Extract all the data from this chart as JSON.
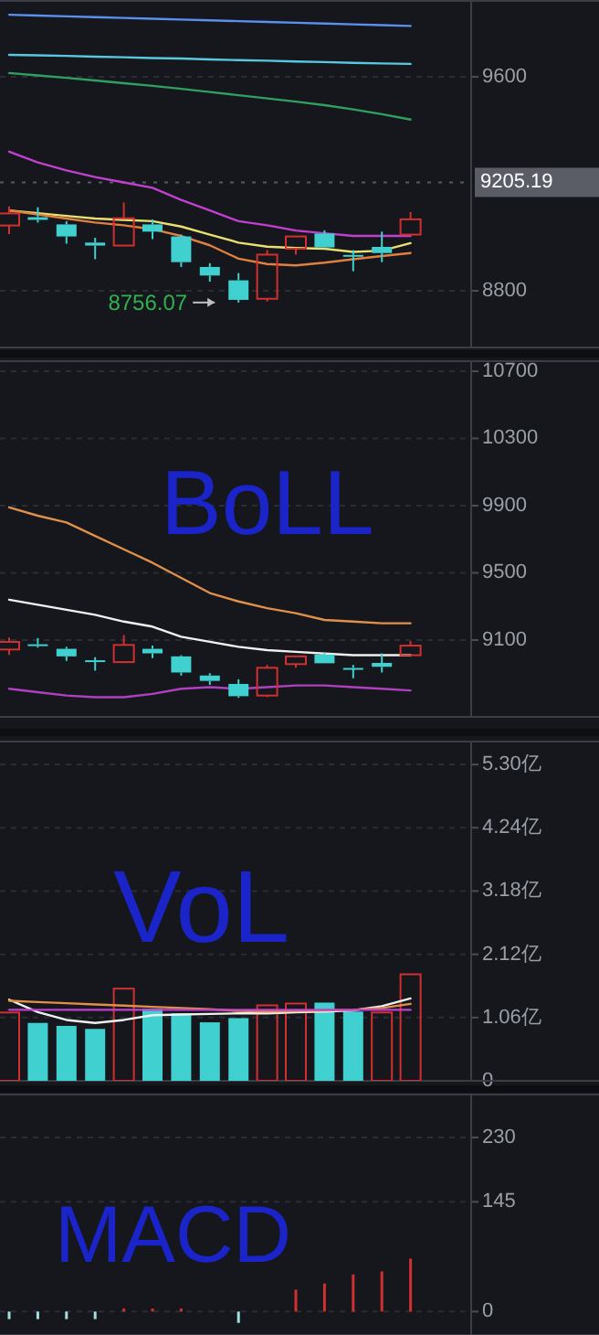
{
  "chart_data": [
    {
      "type": "candlestick",
      "categories": [
        null,
        null,
        null,
        null,
        null,
        null,
        null,
        null,
        null,
        null,
        null,
        null,
        null,
        null,
        null
      ],
      "ohlc": [
        [
          9044,
          9115,
          9012,
          9089
        ],
        [
          9075,
          9112,
          9055,
          9065
        ],
        [
          9048,
          9060,
          8976,
          9003
        ],
        [
          8980,
          8998,
          8918,
          8969
        ],
        [
          8969,
          9130,
          8969,
          9071
        ],
        [
          9048,
          9067,
          8993,
          9021
        ],
        [
          9003,
          9010,
          8889,
          8907
        ],
        [
          8889,
          8903,
          8834,
          8857
        ],
        [
          8839,
          8866,
          8756.07,
          8766
        ],
        [
          8770,
          8952,
          8760,
          8935
        ],
        [
          8957,
          9003,
          8935,
          9003
        ],
        [
          9014,
          9026,
          8962,
          8962
        ],
        [
          8934,
          8952,
          8873,
          8930
        ],
        [
          8964,
          9021,
          8907,
          8941
        ],
        [
          9010,
          9094,
          9010,
          9067
        ]
      ],
      "colors": [
        "#d03030",
        "#40d0d0",
        "#40d0d0",
        "#40d0d0",
        "#d03030",
        "#40d0d0",
        "#40d0d0",
        "#40d0d0",
        "#40d0d0",
        "#d03030",
        "#d03030",
        "#40d0d0",
        "#40d0d0",
        "#40d0d0",
        "#d03030"
      ],
      "series": [
        {
          "type": "line",
          "color": "#5b8ff0",
          "values": [
            9832,
            9829,
            9826,
            9823,
            9820,
            9817,
            9814,
            9811,
            9808,
            9805,
            9802,
            9799,
            9796,
            9793,
            9790
          ]
        },
        {
          "type": "line",
          "color": "#58c8e0",
          "values": [
            9682,
            9680,
            9678,
            9675,
            9673,
            9670,
            9668,
            9665,
            9662,
            9660,
            9657,
            9655,
            9652,
            9650,
            9648
          ]
        },
        {
          "type": "line",
          "color": "#30a060",
          "values": [
            9614,
            9605,
            9596,
            9586,
            9576,
            9566,
            9555,
            9543,
            9531,
            9519,
            9507,
            9494,
            9478,
            9460,
            9440
          ]
        },
        {
          "type": "line",
          "color": "#c040d0",
          "values": [
            9320,
            9280,
            9250,
            9225,
            9205,
            9185,
            9140,
            9100,
            9060,
            9045,
            9025,
            9015,
            9005,
            9005,
            9005
          ]
        },
        {
          "type": "line",
          "color": "#e8e070",
          "values": [
            9100,
            9090,
            9080,
            9070,
            9065,
            9060,
            9040,
            9010,
            8980,
            8965,
            8960,
            8957,
            8945,
            8950,
            8978
          ]
        },
        {
          "type": "line",
          "color": "#e08040",
          "values": [
            9100,
            9085,
            9070,
            9055,
            9045,
            9030,
            9005,
            8970,
            8920,
            8900,
            8895,
            8905,
            8918,
            8930,
            8941
          ]
        }
      ],
      "ylim": [
        8588,
        9887
      ],
      "yticks": [
        8800,
        9600
      ],
      "grid": "y",
      "tick_labels": "y",
      "ref_lines": [
        {
          "axis": "y",
          "value": 9205.19,
          "label": "9205.19",
          "color": "#5a5d66"
        }
      ],
      "annotations": [
        "8756.07"
      ]
    },
    {
      "type": "candlestick",
      "categories": [
        null,
        null,
        null,
        null,
        null,
        null,
        null,
        null,
        null,
        null,
        null,
        null,
        null,
        null,
        null
      ],
      "ohlc": [
        [
          9044,
          9115,
          9012,
          9089
        ],
        [
          9075,
          9112,
          9055,
          9065
        ],
        [
          9048,
          9060,
          8976,
          9003
        ],
        [
          8980,
          8998,
          8918,
          8969
        ],
        [
          8969,
          9130,
          8969,
          9071
        ],
        [
          9048,
          9067,
          8993,
          9021
        ],
        [
          9003,
          9010,
          8889,
          8907
        ],
        [
          8889,
          8903,
          8834,
          8857
        ],
        [
          8839,
          8866,
          8756.07,
          8766
        ],
        [
          8770,
          8952,
          8760,
          8935
        ],
        [
          8957,
          9003,
          8935,
          9003
        ],
        [
          9014,
          9026,
          8962,
          8962
        ],
        [
          8934,
          8952,
          8873,
          8930
        ],
        [
          8964,
          9021,
          8907,
          8941
        ],
        [
          9010,
          9094,
          9010,
          9067
        ]
      ],
      "colors": [
        "#d03030",
        "#40d0d0",
        "#40d0d0",
        "#40d0d0",
        "#d03030",
        "#40d0d0",
        "#40d0d0",
        "#40d0d0",
        "#40d0d0",
        "#d03030",
        "#d03030",
        "#40d0d0",
        "#40d0d0",
        "#40d0d0",
        "#d03030"
      ],
      "series": [
        {
          "type": "line",
          "color": "#e0904a",
          "values": [
            9890,
            9840,
            9800,
            9720,
            9640,
            9560,
            9470,
            9380,
            9330,
            9290,
            9260,
            9220,
            9210,
            9200,
            9200
          ]
        },
        {
          "type": "line",
          "color": "#f0f0f0",
          "values": [
            9340,
            9310,
            9280,
            9250,
            9210,
            9180,
            9120,
            9090,
            9060,
            9040,
            9030,
            9020,
            9010,
            9010,
            9010
          ]
        },
        {
          "type": "line",
          "color": "#b040c0",
          "values": [
            8810,
            8790,
            8770,
            8760,
            8760,
            8780,
            8810,
            8820,
            8810,
            8820,
            8830,
            8830,
            8820,
            8810,
            8800
          ]
        }
      ],
      "ylim": [
        8643,
        10765
      ],
      "yticks": [
        9100,
        9500,
        9900,
        10300,
        10700
      ],
      "grid": "y",
      "tick_labels": "y",
      "annotations": [
        "BoLL"
      ]
    },
    {
      "type": "bar",
      "categories": [
        null,
        null,
        null,
        null,
        null,
        null,
        null,
        null,
        null,
        null,
        null,
        null,
        null,
        null,
        null
      ],
      "series": [
        {
          "type": "bar",
          "colors": [
            "#d03030",
            "#40d0d0",
            "#40d0d0",
            "#40d0d0",
            "#d03030",
            "#40d0d0",
            "#40d0d0",
            "#40d0d0",
            "#40d0d0",
            "#d03030",
            "#d03030",
            "#40d0d0",
            "#40d0d0",
            "#d03030",
            "#d03030"
          ],
          "values": [
            1.16,
            0.97,
            0.92,
            0.87,
            1.56,
            1.21,
            1.13,
            0.98,
            1.05,
            1.28,
            1.31,
            1.31,
            1.16,
            1.16,
            1.8
          ]
        },
        {
          "type": "line",
          "color": "#f0f0f0",
          "values": [
            1.36,
            1.15,
            1.02,
            0.97,
            1.02,
            1.1,
            1.11,
            1.12,
            1.13,
            1.13,
            1.15,
            1.16,
            1.18,
            1.25,
            1.38
          ]
        },
        {
          "type": "line",
          "color": "#e0904a",
          "values": [
            1.34,
            1.32,
            1.3,
            1.28,
            1.26,
            1.24,
            1.22,
            1.2,
            1.17,
            1.16,
            1.17,
            1.18,
            1.19,
            1.22,
            1.29
          ]
        },
        {
          "type": "line",
          "color": "#c040d0",
          "values": [
            1.19,
            1.19,
            1.19,
            1.19,
            1.19,
            1.19,
            1.19,
            1.19,
            1.19,
            1.19,
            1.19,
            1.19,
            1.19,
            1.19,
            1.19
          ]
        }
      ],
      "ylim": [
        0,
        5.7
      ],
      "yticks": [
        0,
        {
          "value": 1.06,
          "label": "1.06亿"
        },
        {
          "value": 2.12,
          "label": "2.12亿"
        },
        {
          "value": 3.18,
          "label": "3.18亿"
        },
        {
          "value": 4.24,
          "label": "4.24亿"
        },
        {
          "value": 5.3,
          "label": "5.30亿"
        }
      ],
      "grid": "y",
      "tick_labels": "y",
      "annotations": [
        "VoL"
      ]
    },
    {
      "type": "bar",
      "categories": [
        null,
        null,
        null,
        null,
        null,
        null,
        null,
        null,
        null,
        null,
        null,
        null,
        null,
        null,
        null
      ],
      "series": [
        {
          "type": "bar",
          "colors": [
            "#a0e0e0",
            "#a0e0e0",
            "#a0e0e0",
            "#a0e0e0",
            "#d03030",
            "#d03030",
            "#d03030",
            null,
            "#a0e0e0",
            null,
            "#d03030",
            "#d03030",
            "#d03030",
            "#d03030",
            "#d03030"
          ],
          "values": [
            -10,
            -10,
            -10,
            -10,
            4,
            4,
            4,
            null,
            -15,
            null,
            29,
            37,
            49,
            53,
            70
          ]
        }
      ],
      "ylim": [
        -31,
        288
      ],
      "yticks": [
        0,
        145,
        230
      ],
      "grid": "y",
      "tick_labels": "y",
      "annotations": [
        "MACD"
      ]
    }
  ]
}
